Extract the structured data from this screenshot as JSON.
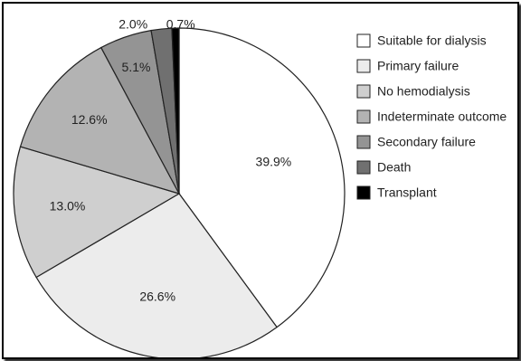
{
  "chart_data": {
    "type": "pie",
    "title": "",
    "slices": [
      {
        "label": "Suitable for dialysis",
        "value": 39.9,
        "value_label": "39.9%",
        "color": "#ffffff"
      },
      {
        "label": "Primary failure",
        "value": 26.6,
        "value_label": "26.6%",
        "color": "#ececec"
      },
      {
        "label": "No hemodialysis",
        "value": 13.0,
        "value_label": "13.0%",
        "color": "#cfcfcf"
      },
      {
        "label": "Indeterminate outcome",
        "value": 12.6,
        "value_label": "12.6%",
        "color": "#b3b3b3"
      },
      {
        "label": "Secondary failure",
        "value": 5.1,
        "value_label": "5.1%",
        "color": "#949494"
      },
      {
        "label": "Death",
        "value": 2.0,
        "value_label": "2.0%",
        "color": "#707070"
      },
      {
        "label": "Transplant",
        "value": 0.7,
        "value_label": "0.7%",
        "color": "#000000"
      }
    ],
    "start_angle_deg": 0,
    "direction": "clockwise",
    "legend_position": "right"
  }
}
